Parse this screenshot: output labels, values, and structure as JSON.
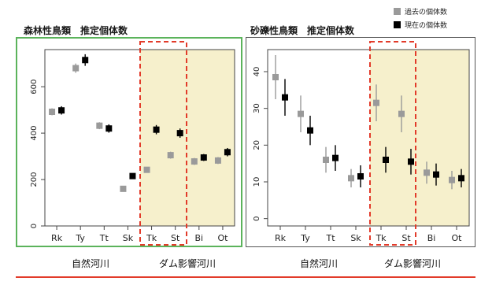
{
  "legend": [
    {
      "label": "過去の個体数",
      "color": "#9a9a9a"
    },
    {
      "label": "現在の個体数",
      "color": "#000000"
    }
  ],
  "colors": {
    "past": "#9a9a9a",
    "present": "#000000",
    "dam_shade": "#f6f0cc",
    "dam_box": "#e23b2a",
    "forest_frame": "#5bb35b",
    "gravel_frame": "#555555",
    "bottom_rule": "#e23b2a"
  },
  "group_labels": {
    "natural": "自然河川",
    "dam": "ダム影響河川"
  },
  "chart_data": [
    {
      "type": "scatter",
      "title": "森林性鳥類　推定個体数",
      "categories": [
        "Rk",
        "Ty",
        "Tt",
        "Sk",
        "Tk",
        "St",
        "Bi",
        "Ot"
      ],
      "ylim": [
        0,
        760
      ],
      "yticks": [
        0,
        200,
        400,
        600
      ],
      "grid": false,
      "dam_affected": [
        "Tk",
        "St",
        "Bi",
        "Ot"
      ],
      "dam_box_sites": [
        "Tk",
        "St"
      ],
      "series": [
        {
          "name": "過去の個体数",
          "values": [
            492,
            680,
            432,
            160,
            242,
            305,
            278,
            282
          ],
          "err": [
            15,
            20,
            15,
            10,
            12,
            15,
            15,
            15
          ]
        },
        {
          "name": "現在の個体数",
          "values": [
            498,
            715,
            420,
            215,
            415,
            400,
            295,
            318
          ],
          "err": [
            18,
            25,
            18,
            12,
            20,
            20,
            15,
            18
          ]
        }
      ]
    },
    {
      "type": "scatter",
      "title": "砂礫性鳥類　推定個体数",
      "categories": [
        "Rk",
        "Ty",
        "Tt",
        "Sk",
        "Tk",
        "St",
        "Bi",
        "Ot"
      ],
      "ylim": [
        -2,
        46
      ],
      "yticks": [
        0,
        10,
        20,
        30,
        40
      ],
      "grid": false,
      "dam_affected": [
        "Tk",
        "St",
        "Bi",
        "Ot"
      ],
      "dam_box_sites": [
        "Tk",
        "St"
      ],
      "series": [
        {
          "name": "過去の個体数",
          "values": [
            38.5,
            28.5,
            16,
            11,
            31.5,
            28.5,
            12.5,
            10.5
          ],
          "err": [
            6,
            5,
            3.5,
            2.5,
            5,
            5,
            3,
            2.5
          ]
        },
        {
          "name": "現在の個体数",
          "values": [
            33,
            24,
            16.5,
            11.5,
            16,
            15.5,
            12,
            11
          ],
          "err": [
            5,
            4,
            3.5,
            3,
            3.5,
            3.5,
            3,
            2.5
          ]
        }
      ]
    }
  ]
}
